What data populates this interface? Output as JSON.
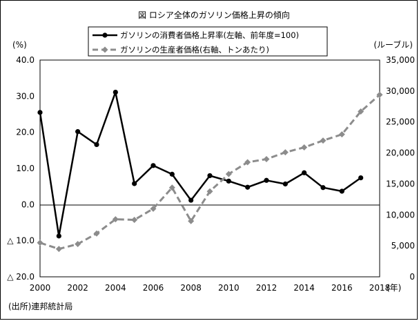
{
  "chart_data": {
    "type": "line",
    "title": "図 ロシア全体のガソリン価格上昇の傾向",
    "left_axis": {
      "unit_label": "(%)",
      "range": [
        -20,
        40
      ],
      "ticks": [
        {
          "value": 40,
          "label": "40.0"
        },
        {
          "value": 30,
          "label": "30.0"
        },
        {
          "value": 20,
          "label": "20.0"
        },
        {
          "value": 10,
          "label": "10.0"
        },
        {
          "value": 0,
          "label": "0.0"
        },
        {
          "value": -10,
          "label": "△ 10.0"
        },
        {
          "value": -20,
          "label": "△ 20.0"
        }
      ]
    },
    "right_axis": {
      "unit_label": "(ルーブル)",
      "range": [
        0,
        35000
      ],
      "ticks": [
        {
          "value": 35000,
          "label": "35,000"
        },
        {
          "value": 30000,
          "label": "30,000"
        },
        {
          "value": 25000,
          "label": "25,000"
        },
        {
          "value": 20000,
          "label": "20,000"
        },
        {
          "value": 15000,
          "label": "15,000"
        },
        {
          "value": 10000,
          "label": "10,000"
        },
        {
          "value": 5000,
          "label": "5,000"
        },
        {
          "value": 0,
          "label": "0"
        }
      ]
    },
    "x_axis": {
      "range": [
        2000,
        2018
      ],
      "ticks": [
        2000,
        2002,
        2004,
        2006,
        2008,
        2010,
        2012,
        2014,
        2016,
        2018
      ],
      "unit_label": "(年)"
    },
    "series": [
      {
        "name": "ガソリンの消費者価格上昇率(左軸、前年度=100)",
        "axis": "left",
        "color": "#000000",
        "style": "solid",
        "marker": "circle",
        "points": [
          [
            2000,
            25.5
          ],
          [
            2001,
            -8.7
          ],
          [
            2002,
            20.2
          ],
          [
            2003,
            16.6
          ],
          [
            2004,
            31.1
          ],
          [
            2005,
            5.8
          ],
          [
            2006,
            10.8
          ],
          [
            2007,
            8.4
          ],
          [
            2008,
            1.2
          ],
          [
            2009,
            8.0
          ],
          [
            2010,
            6.5
          ],
          [
            2011,
            4.8
          ],
          [
            2012,
            6.7
          ],
          [
            2013,
            5.7
          ],
          [
            2014,
            8.8
          ],
          [
            2015,
            4.7
          ],
          [
            2016,
            3.7
          ],
          [
            2017,
            7.4
          ]
        ]
      },
      {
        "name": "ガソリンの生産者価格(右軸、トンあたり)",
        "axis": "right",
        "color": "#8c8c8c",
        "style": "dashed",
        "marker": "diamond",
        "points": [
          [
            2000,
            5500
          ],
          [
            2001,
            4500
          ],
          [
            2002,
            5300
          ],
          [
            2003,
            7000
          ],
          [
            2004,
            9300
          ],
          [
            2005,
            9200
          ],
          [
            2006,
            11000
          ],
          [
            2007,
            14400
          ],
          [
            2008,
            9000
          ],
          [
            2009,
            13800
          ],
          [
            2010,
            16600
          ],
          [
            2011,
            18500
          ],
          [
            2012,
            19000
          ],
          [
            2013,
            20100
          ],
          [
            2014,
            20900
          ],
          [
            2015,
            22000
          ],
          [
            2016,
            23000
          ],
          [
            2017,
            26700
          ],
          [
            2018,
            29400
          ]
        ]
      }
    ],
    "grid": false,
    "legend_placement": "top"
  },
  "source_note": "(出所)連邦統計局"
}
